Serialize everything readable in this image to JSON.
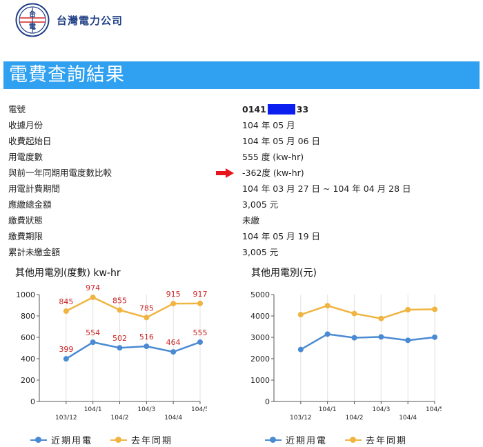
{
  "header": {
    "company_name": "台灣電力公司",
    "logo_text": "台電"
  },
  "page_title": "電費查詢結果",
  "info": [
    {
      "label": "電號",
      "value_prefix": "0141",
      "value_suffix": "33",
      "masked": true
    },
    {
      "label": "收據月份",
      "value": "104 年 05 月"
    },
    {
      "label": "收費起始日",
      "value": "104 年 05 月 06 日"
    },
    {
      "label": "用電度數",
      "value": "555 度 (kw-hr)"
    },
    {
      "label": "與前一年同期用電度數比較",
      "value": "-362度 (kw-hr)"
    },
    {
      "label": "用電計費期間",
      "value": "104 年 03 月 27 日 ~ 104 年 04 月 28 日"
    },
    {
      "label": "應繳總金額",
      "value": "3,005 元"
    },
    {
      "label": "繳費狀態",
      "value": "未繳"
    },
    {
      "label": "繳費期限",
      "value": "104 年 05 月 19 日"
    },
    {
      "label": "累計未繳金額",
      "value": "3,005 元"
    }
  ],
  "colors": {
    "recent": "#4a8ad2",
    "last_year": "#f0b441",
    "label_red": "#cc2222",
    "title_bar": "#2fa1f0",
    "arrow": "#e8141c"
  },
  "chart_data": [
    {
      "type": "line",
      "title": "其他用電別(度數) kw-hr",
      "x": [
        "103/12",
        "104/1",
        "104/2",
        "104/3",
        "104/4",
        "104/5"
      ],
      "series": [
        {
          "name": "近期用電",
          "values": [
            399,
            554,
            502,
            516,
            464,
            555
          ]
        },
        {
          "name": "去年同期",
          "values": [
            845,
            974,
            855,
            785,
            915,
            917
          ]
        }
      ],
      "ylim": [
        0,
        1000
      ],
      "yticks": [
        0,
        200,
        400,
        600,
        800,
        1000
      ],
      "data_labels": true,
      "grid": true,
      "legend": "bottom"
    },
    {
      "type": "line",
      "title": "其他用電別(元)",
      "x": [
        "103/12",
        "104/1",
        "104/2",
        "104/3",
        "104/4",
        "104/5"
      ],
      "series": [
        {
          "name": "近期用電",
          "values": [
            2430,
            3150,
            2980,
            3020,
            2860,
            3005
          ]
        },
        {
          "name": "去年同期",
          "values": [
            4060,
            4480,
            4110,
            3880,
            4290,
            4310
          ]
        }
      ],
      "ylim": [
        0,
        5000
      ],
      "yticks": [
        0,
        1000,
        2000,
        3000,
        4000,
        5000
      ],
      "data_labels": false,
      "grid": true,
      "legend": "bottom"
    }
  ]
}
